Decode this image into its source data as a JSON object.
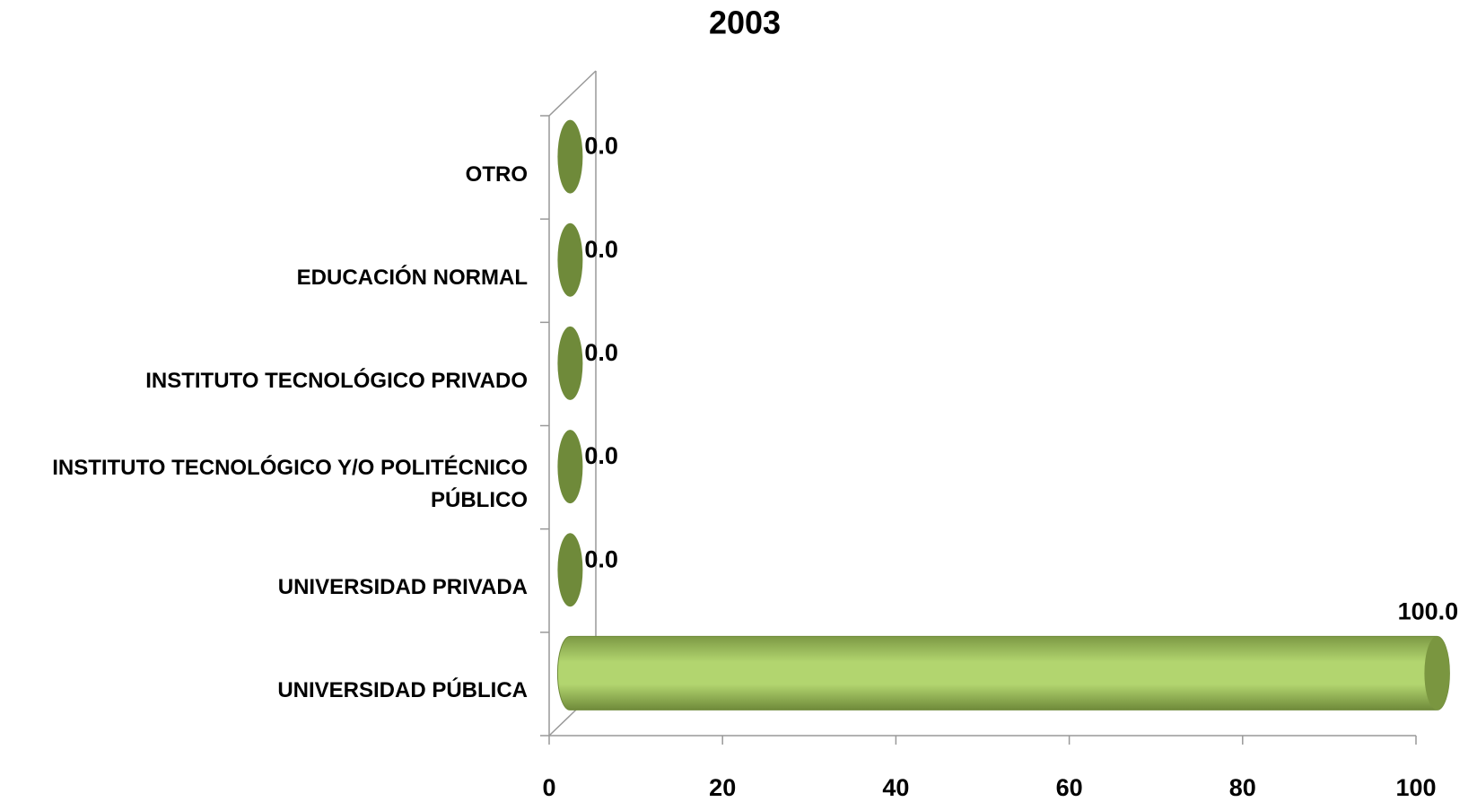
{
  "chart_data": {
    "type": "bar3d",
    "title": "2003",
    "categories": [
      "UNIVERSIDAD PÚBLICA",
      "UNIVERSIDAD PRIVADA",
      "INSTITUTO TECNOLÓGICO Y/O POLITÉCNICO PÚBLICO",
      "INSTITUTO TECNOLÓGICO PRIVADO",
      "EDUCACIÓN NORMAL",
      "OTRO"
    ],
    "values": [
      100,
      0,
      0,
      0,
      0,
      0
    ],
    "value_labels": [
      "100.0",
      "0.0",
      "0.0",
      "0.0",
      "0.0",
      "0.0"
    ],
    "color": "#9bbb59",
    "xlim": [
      0,
      100
    ],
    "xticks": [
      0,
      20,
      40,
      60,
      80,
      100
    ]
  }
}
